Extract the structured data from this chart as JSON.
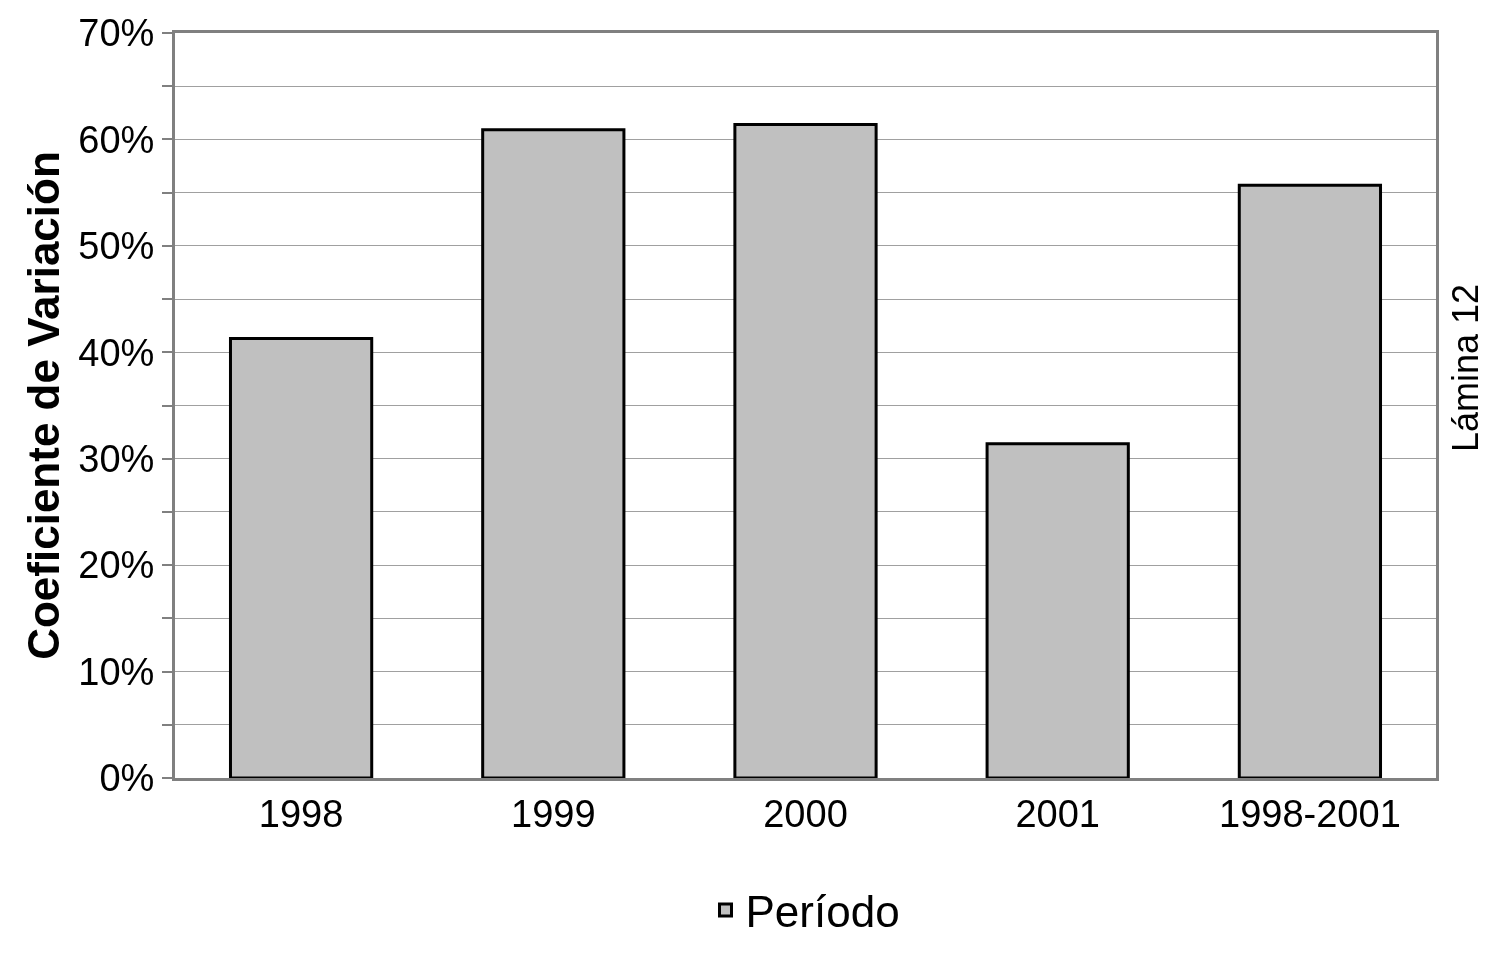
{
  "chart_data": {
    "type": "bar",
    "ylabel": "Coeficiente de Variación",
    "annotations": [
      "Lámina 12"
    ],
    "categories": [
      "1998",
      "1999",
      "2000",
      "2001",
      "1998-2001"
    ],
    "series": [
      {
        "name": "Período",
        "color": "#c0c0c0",
        "values": [
          41.3,
          60.9,
          61.4,
          31.4,
          55.7
        ]
      }
    ],
    "ylim": [
      0,
      70
    ],
    "yticks": [
      {
        "value": 0,
        "label": "0%"
      },
      {
        "value": 5,
        "label": null
      },
      {
        "value": 10,
        "label": "10%"
      },
      {
        "value": 15,
        "label": null
      },
      {
        "value": 20,
        "label": "20%"
      },
      {
        "value": 25,
        "label": null
      },
      {
        "value": 30,
        "label": "30%"
      },
      {
        "value": 35,
        "label": null
      },
      {
        "value": 40,
        "label": "40%"
      },
      {
        "value": 45,
        "label": null
      },
      {
        "value": 50,
        "label": "50%"
      },
      {
        "value": 55,
        "label": null
      },
      {
        "value": 60,
        "label": "60%"
      },
      {
        "value": 65,
        "label": null
      },
      {
        "value": 70,
        "label": "70%"
      }
    ],
    "grid": "y",
    "legend": "bottom"
  }
}
